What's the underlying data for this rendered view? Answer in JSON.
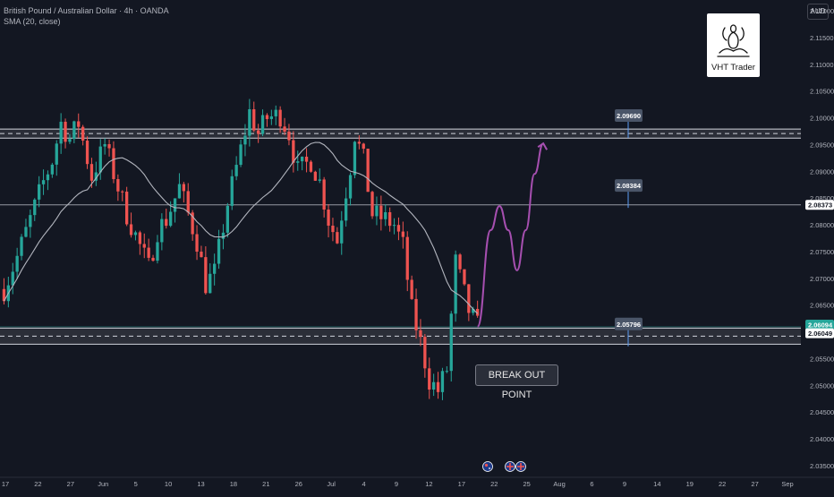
{
  "legend": {
    "symbol": "British Pound / Australian Dollar · 4h · OANDA",
    "indicator": "SMA (20, close)"
  },
  "currency": "AUD",
  "logo_text": "VHT Trader",
  "callout_text": "BREAK OUT POINT",
  "colors": {
    "background": "#131722",
    "bull": "#26a69a",
    "bear": "#ef5350",
    "sma": "#b2b5be",
    "projection": "#a64fb0",
    "zone_line": "#d1d4dc"
  },
  "price_axis": {
    "ticks": [
      "2.12000",
      "2.11500",
      "2.11000",
      "2.10500",
      "2.10000",
      "2.09500",
      "2.09000",
      "2.08500",
      "2.08000",
      "2.07500",
      "2.07000",
      "2.06500",
      "2.06000",
      "2.05500",
      "2.05000",
      "2.04500",
      "2.04000",
      "2.03500"
    ],
    "max": 2.12,
    "min": 2.035
  },
  "time_axis": {
    "labels": [
      "17",
      "22",
      "27",
      "Jun",
      "5",
      "10",
      "13",
      "18",
      "21",
      "26",
      "Jul",
      "4",
      "9",
      "12",
      "17",
      "22",
      "25",
      "Aug",
      "6",
      "9",
      "14",
      "19",
      "22",
      "27",
      "Sep"
    ]
  },
  "price_tags": [
    {
      "text": "2.08373",
      "price": 2.08373,
      "bg": "#ffffff",
      "fg": "#131722"
    },
    {
      "text": "2.06094",
      "price": 2.06094,
      "bg": "#26a69a",
      "fg": "#ffffff"
    },
    {
      "text": "2.06049",
      "price": 2.06049,
      "bg": "#ffffff",
      "fg": "#131722"
    }
  ],
  "levels": [
    {
      "label": "2.09690",
      "price": 2.0969
    },
    {
      "label": "2.08384",
      "price": 2.08384
    },
    {
      "label": "2.05796",
      "price": 2.05796
    }
  ],
  "zones": [
    {
      "top": 2.0979,
      "bottom": 2.0962
    },
    {
      "top": 2.0607,
      "bottom": 2.0577
    }
  ],
  "horizontal_line_price": 2.08373,
  "current_price": 2.06094,
  "event_markers": [
    "AU",
    "GB",
    "GB"
  ],
  "chart_data": {
    "type": "candlestick",
    "symbol": "British Pound / Australian Dollar",
    "timeframe": "4h",
    "indicator": "SMA (20, close)",
    "ylim": [
      2.035,
      2.12
    ],
    "key_levels": [
      2.0969,
      2.08384,
      2.05796
    ],
    "current_price": 2.06094,
    "close_path": [
      [
        0,
        2.068
      ],
      [
        3,
        2.074
      ],
      [
        6,
        2.081
      ],
      [
        9,
        2.088
      ],
      [
        11,
        2.092
      ],
      [
        13,
        2.099
      ],
      [
        15,
        2.096
      ],
      [
        17,
        2.099
      ],
      [
        20,
        2.089
      ],
      [
        23,
        2.095
      ],
      [
        26,
        2.087
      ],
      [
        28,
        2.082
      ],
      [
        30,
        2.078
      ],
      [
        33,
        2.072
      ],
      [
        35,
        2.079
      ],
      [
        37,
        2.081
      ],
      [
        40,
        2.087
      ],
      [
        42,
        2.082
      ],
      [
        44,
        2.077
      ],
      [
        46,
        2.069
      ],
      [
        48,
        2.071
      ],
      [
        51,
        2.084
      ],
      [
        54,
        2.094
      ],
      [
        56,
        2.101
      ],
      [
        58,
        2.097
      ],
      [
        60,
        2.1
      ],
      [
        63,
        2.1005
      ],
      [
        65,
        2.097
      ],
      [
        67,
        2.09
      ],
      [
        70,
        2.092
      ],
      [
        72,
        2.088
      ],
      [
        74,
        2.081
      ],
      [
        76,
        2.077
      ],
      [
        77,
        2.082
      ],
      [
        79,
        2.091
      ],
      [
        80,
        2.097
      ],
      [
        82,
        2.092
      ],
      [
        84,
        2.082
      ],
      [
        87,
        2.081
      ],
      [
        89,
        2.08
      ],
      [
        91,
        2.076
      ],
      [
        93,
        2.064
      ],
      [
        95,
        2.058
      ],
      [
        97,
        2.051
      ],
      [
        99,
        2.049
      ],
      [
        101,
        2.053
      ],
      [
        102,
        2.063
      ],
      [
        103,
        2.073
      ],
      [
        104,
        2.07
      ],
      [
        106,
        2.064
      ],
      [
        108,
        2.061
      ]
    ],
    "projection": [
      [
        108,
        2.061
      ],
      [
        111,
        2.079
      ],
      [
        113,
        2.0835
      ],
      [
        115,
        2.079
      ],
      [
        117,
        2.0715
      ],
      [
        119,
        2.079
      ],
      [
        121,
        2.0895
      ],
      [
        123,
        2.0952
      ]
    ]
  }
}
